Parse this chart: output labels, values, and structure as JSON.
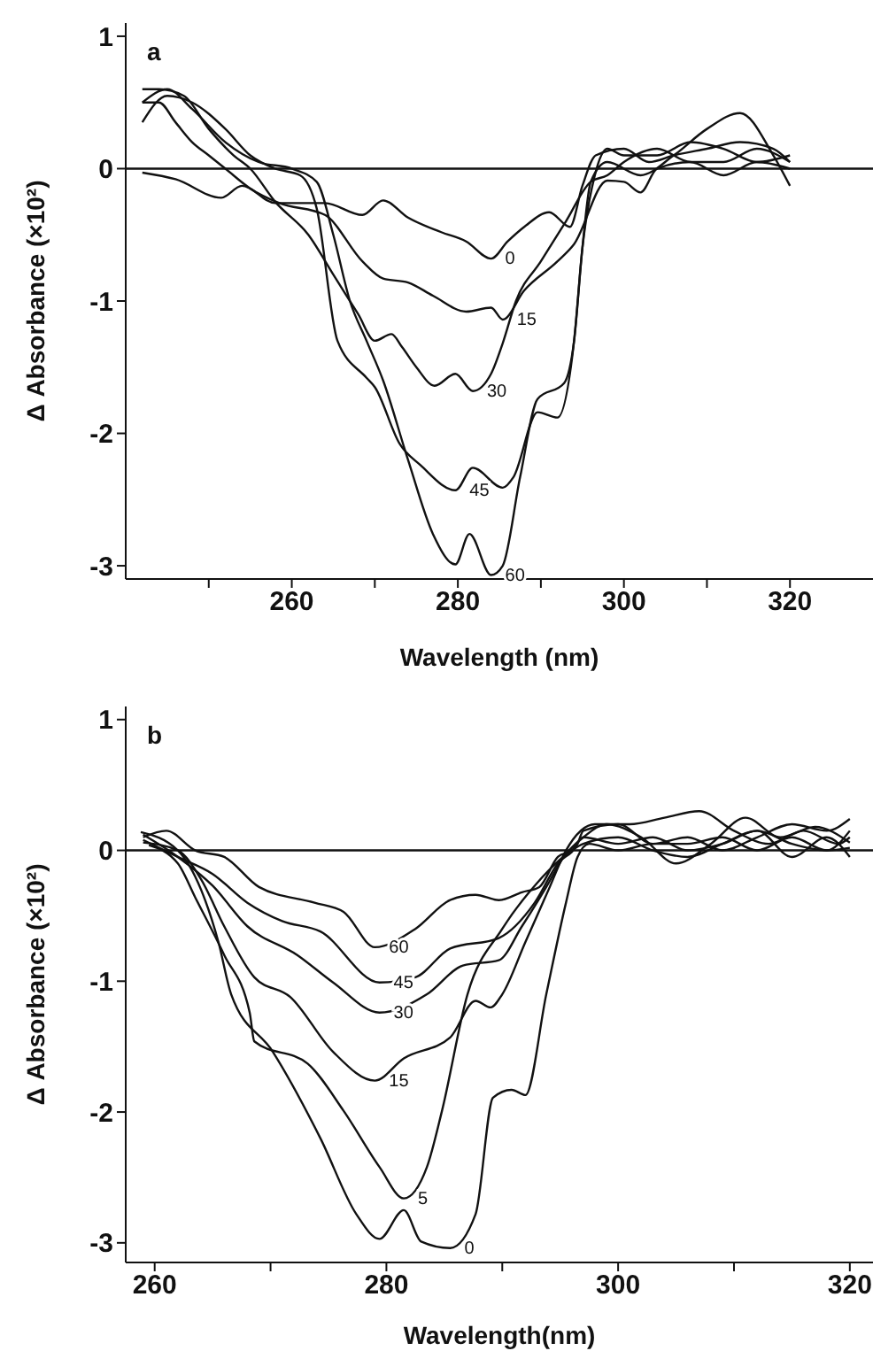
{
  "chart_data": [
    {
      "type": "line",
      "xlabel": "Wavelength (nm)",
      "ylabel": "Δ Absorbance (×10²)",
      "annotations": [
        "a"
      ],
      "xlim": [
        240,
        330
      ],
      "xticks": [
        {
          "value": 250,
          "label": null
        },
        260,
        {
          "value": 270,
          "label": null
        },
        280,
        {
          "value": 290,
          "label": null
        },
        300,
        {
          "value": 310,
          "label": null
        },
        320
      ],
      "ylim": [
        -3.1,
        1.1
      ],
      "yticks": [
        -3,
        -2,
        -1,
        0,
        1
      ],
      "marker": "none",
      "line_style": "solid",
      "ref_lines": [
        {
          "axis": "y",
          "value": 0,
          "color": "#111111"
        }
      ],
      "series": [
        {
          "name": "0",
          "color": "#111111",
          "x": [
            242,
            246,
            251.5,
            254,
            258,
            264,
            268.5,
            271,
            274,
            278,
            281,
            284,
            286,
            288,
            291,
            293.5,
            295,
            296.6,
            300,
            303,
            306,
            310,
            314,
            318,
            320
          ],
          "values": [
            -0.03,
            -0.08,
            -0.22,
            -0.13,
            -0.26,
            -0.26,
            -0.35,
            -0.24,
            -0.37,
            -0.48,
            -0.55,
            -0.68,
            -0.55,
            -0.44,
            -0.33,
            -0.44,
            -0.13,
            0.1,
            0.15,
            0.05,
            0.1,
            0.15,
            0.2,
            0.15,
            0.05
          ]
        },
        {
          "name": "15",
          "color": "#111111",
          "x": [
            242,
            244,
            246,
            248,
            250,
            252,
            255,
            258.5,
            264,
            268.5,
            271,
            274,
            277,
            281,
            284,
            285.4,
            288,
            292,
            294,
            298,
            300,
            302,
            304,
            308,
            312,
            316,
            320
          ],
          "values": [
            0.5,
            0.5,
            0.35,
            0.2,
            0.1,
            0.0,
            -0.15,
            -0.26,
            -0.35,
            -0.7,
            -0.83,
            -0.86,
            -0.96,
            -1.08,
            -1.05,
            -1.14,
            -0.92,
            -0.7,
            -0.57,
            -0.09,
            -0.1,
            -0.18,
            0.0,
            0.05,
            -0.05,
            0.05,
            0.0
          ]
        },
        {
          "name": "30",
          "color": "#111111",
          "x": [
            242,
            244,
            247,
            250,
            253,
            255,
            258,
            262,
            265,
            268,
            270,
            272,
            273.3,
            275,
            277.2,
            279.7,
            281.8,
            284,
            285.4,
            287,
            290,
            293,
            296,
            298,
            300,
            304,
            308,
            312,
            316,
            320
          ],
          "values": [
            0.6,
            0.6,
            0.55,
            0.3,
            0.1,
            0.0,
            -0.25,
            -0.5,
            -0.8,
            -1.1,
            -1.3,
            -1.25,
            -1.35,
            -1.5,
            -1.64,
            -1.55,
            -1.68,
            -1.55,
            -1.32,
            -1.0,
            -0.7,
            -0.4,
            -0.1,
            -0.05,
            0.05,
            0.15,
            0.05,
            0.05,
            0.15,
            0.05
          ]
        },
        {
          "name": "45",
          "color": "#111111",
          "x": [
            242,
            245,
            248,
            252,
            255,
            258,
            261,
            263,
            265.5,
            269,
            270,
            273,
            275.5,
            279.7,
            281.8,
            285.4,
            286.7,
            289.6,
            292,
            294,
            295,
            296.5,
            298,
            300,
            304,
            308,
            312,
            316,
            320
          ],
          "values": [
            0.35,
            0.55,
            0.5,
            0.3,
            0.1,
            0.0,
            -0.05,
            -0.3,
            -1.3,
            -1.58,
            -1.65,
            -2.08,
            -2.24,
            -2.43,
            -2.26,
            -2.41,
            -2.33,
            -1.84,
            -1.88,
            -1.3,
            -0.6,
            -0.05,
            0.15,
            0.1,
            0.1,
            0.2,
            0.15,
            0.05,
            0.1
          ]
        },
        {
          "name": "60",
          "color": "#111111",
          "x": [
            242,
            245,
            248,
            252,
            256,
            260,
            263,
            265,
            267,
            269,
            271,
            274,
            277,
            279.7,
            281.4,
            284,
            285.4,
            287.5,
            289.6,
            292.8,
            294,
            295,
            296,
            298,
            302,
            306,
            310,
            314,
            318,
            320
          ],
          "values": [
            0.5,
            0.6,
            0.45,
            0.2,
            0.05,
            0.0,
            -0.1,
            -0.5,
            -1.0,
            -1.3,
            -1.6,
            -2.2,
            -2.76,
            -2.99,
            -2.76,
            -3.07,
            -3.0,
            -2.33,
            -1.74,
            -1.62,
            -1.3,
            -0.6,
            -0.1,
            0.05,
            -0.05,
            0.1,
            0.3,
            0.42,
            0.1,
            -0.13
          ]
        }
      ]
    },
    {
      "type": "line",
      "xlabel": "Wavelength(nm)",
      "ylabel": "Δ Absorbance (×10²)",
      "annotations": [
        "b"
      ],
      "xlim": [
        257.5,
        322
      ],
      "xticks": [
        260,
        {
          "value": 270,
          "label": null
        },
        280,
        {
          "value": 290,
          "label": null
        },
        300,
        {
          "value": 310,
          "label": null
        },
        320
      ],
      "ylim": [
        -3.15,
        1.1
      ],
      "yticks": [
        -3,
        -2,
        -1,
        0,
        1
      ],
      "marker": "none",
      "line_style": "solid",
      "ref_lines": [
        {
          "axis": "y",
          "value": 0,
          "color": "#111111"
        }
      ],
      "series": [
        {
          "name": "60",
          "color": "#111111",
          "x": [
            259,
            261,
            263.5,
            266,
            269,
            273.8,
            276.3,
            279,
            282.5,
            285.5,
            287.7,
            289.7,
            291.7,
            293.2,
            294.8,
            296,
            297,
            300,
            303,
            306,
            309,
            312,
            315,
            318,
            320
          ],
          "values": [
            0.1,
            0.15,
            0.0,
            -0.05,
            -0.28,
            -0.4,
            -0.47,
            -0.74,
            -0.6,
            -0.38,
            -0.34,
            -0.38,
            -0.32,
            -0.28,
            -0.05,
            0.0,
            0.1,
            0.05,
            0.1,
            0.0,
            0.05,
            0.15,
            0.05,
            0.0,
            0.02
          ]
        },
        {
          "name": "45",
          "color": "#111111",
          "x": [
            259,
            262,
            265,
            268,
            271,
            274.3,
            279.4,
            282.5,
            285.5,
            289.7,
            292.8,
            294.8,
            296.5,
            297,
            300,
            303,
            306,
            309,
            312,
            315,
            318,
            320
          ],
          "values": [
            0.08,
            -0.05,
            -0.18,
            -0.4,
            -0.54,
            -0.62,
            -1.01,
            -0.97,
            -0.75,
            -0.67,
            -0.4,
            -0.1,
            0.05,
            0.15,
            0.2,
            0.05,
            0.1,
            0.0,
            0.1,
            0.2,
            0.15,
            0.24
          ]
        },
        {
          "name": "30",
          "color": "#111111",
          "x": [
            259,
            262,
            265,
            268,
            272.3,
            275.4,
            279.4,
            283.5,
            286.6,
            289.7,
            291.7,
            293.8,
            295.3,
            297,
            299,
            302,
            305,
            308,
            311,
            314,
            317,
            320
          ],
          "values": [
            0.12,
            -0.05,
            -0.27,
            -0.58,
            -0.8,
            -1.01,
            -1.24,
            -1.1,
            -0.88,
            -0.84,
            -0.58,
            -0.28,
            -0.05,
            0.1,
            0.2,
            0.1,
            -0.1,
            0.05,
            0.25,
            0.1,
            0.18,
            0.06
          ]
        },
        {
          "name": "15",
          "color": "#111111",
          "x": [
            259,
            262,
            264,
            266,
            268.6,
            271.7,
            275.4,
            279,
            281.5,
            285.5,
            287.7,
            289,
            290,
            292,
            294,
            295.5,
            298,
            301,
            304,
            307,
            310,
            313,
            316,
            319,
            320
          ],
          "values": [
            0.06,
            0.0,
            -0.22,
            -0.58,
            -0.97,
            -1.12,
            -1.54,
            -1.76,
            -1.59,
            -1.43,
            -1.15,
            -1.2,
            -1.1,
            -0.7,
            -0.3,
            0.0,
            0.2,
            0.2,
            0.25,
            0.3,
            0.15,
            0.05,
            0.15,
            0.05,
            0.1
          ]
        },
        {
          "name": "5",
          "color": "#111111",
          "x": [
            259.5,
            262,
            263.5,
            266,
            268.2,
            268.6,
            273.2,
            276.3,
            279.4,
            281.5,
            283.5,
            284.8,
            287,
            290,
            293,
            296,
            297,
            300,
            303,
            306,
            309,
            312,
            315,
            318,
            320
          ],
          "values": [
            0.04,
            -0.1,
            -0.36,
            -0.8,
            -1.24,
            -1.46,
            -1.63,
            -1.99,
            -2.42,
            -2.66,
            -2.42,
            -1.99,
            -1.1,
            -0.6,
            -0.25,
            0.0,
            0.05,
            0.1,
            0.0,
            -0.05,
            0.05,
            0.15,
            -0.05,
            0.1,
            -0.05
          ]
        },
        {
          "name": "0",
          "color": "#111111",
          "x": [
            258.8,
            262,
            264,
            265.5,
            266.6,
            270.2,
            274.3,
            277.4,
            279.4,
            281.5,
            283,
            285.5,
            287.7,
            289.2,
            290.8,
            292,
            293.8,
            295.5,
            296.5,
            297.5,
            300,
            303,
            306,
            309,
            312,
            315,
            318,
            320
          ],
          "values": [
            0.14,
            0.0,
            -0.3,
            -0.7,
            -1.1,
            -1.54,
            -2.2,
            -2.78,
            -2.97,
            -2.75,
            -2.99,
            -3.04,
            -2.78,
            -1.89,
            -1.83,
            -1.87,
            -1.1,
            -0.4,
            -0.05,
            0.05,
            0.0,
            0.05,
            0.05,
            0.1,
            0.0,
            0.1,
            0.0,
            0.15
          ]
        }
      ]
    }
  ]
}
